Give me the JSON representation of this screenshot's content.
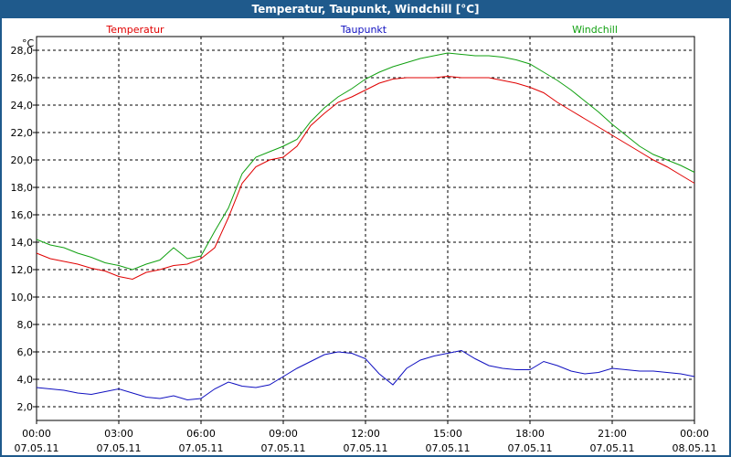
{
  "window": {
    "title": "Temperatur, Taupunkt, Windchill [°C]"
  },
  "chart_data": {
    "type": "line",
    "title": "Temperatur, Taupunkt, Windchill [°C]",
    "ylabel": "°C",
    "xlabel": "",
    "ylim": [
      1.0,
      29.0
    ],
    "xlim": [
      0,
      24
    ],
    "grid": true,
    "yticks": [
      2.0,
      4.0,
      6.0,
      8.0,
      10.0,
      12.0,
      14.0,
      16.0,
      18.0,
      20.0,
      22.0,
      24.0,
      26.0,
      28.0
    ],
    "ytick_labels": [
      "2,0",
      "4,0",
      "6,0",
      "8,0",
      "10,0",
      "12,0",
      "14,0",
      "16,0",
      "18,0",
      "20,0",
      "22,0",
      "24,0",
      "26,0",
      "28,0"
    ],
    "xticks": [
      {
        "hour": 0,
        "time": "00:00",
        "date": "07.05.11"
      },
      {
        "hour": 3,
        "time": "03:00",
        "date": "07.05.11"
      },
      {
        "hour": 6,
        "time": "06:00",
        "date": "07.05.11"
      },
      {
        "hour": 9,
        "time": "09:00",
        "date": "07.05.11"
      },
      {
        "hour": 12,
        "time": "12:00",
        "date": "07.05.11"
      },
      {
        "hour": 15,
        "time": "15:00",
        "date": "07.05.11"
      },
      {
        "hour": 18,
        "time": "18:00",
        "date": "07.05.11"
      },
      {
        "hour": 21,
        "time": "21:00",
        "date": "07.05.11"
      },
      {
        "hour": 24,
        "time": "00:00",
        "date": "08.05.11"
      }
    ],
    "series": [
      {
        "name": "Temperatur",
        "color": "#e00000",
        "legend_position": "left",
        "x": [
          0,
          0.5,
          1,
          1.5,
          2,
          2.5,
          3,
          3.5,
          4,
          4.5,
          5,
          5.5,
          6,
          6.5,
          7,
          7.5,
          8,
          8.5,
          9,
          9.5,
          10,
          10.5,
          11,
          11.5,
          12,
          12.5,
          13,
          13.5,
          14,
          14.5,
          15,
          15.5,
          16,
          16.5,
          17,
          17.5,
          18,
          18.5,
          19,
          19.5,
          20,
          20.5,
          21,
          21.5,
          22,
          22.5,
          23,
          23.5,
          24
        ],
        "y": [
          13.2,
          12.8,
          12.6,
          12.4,
          12.1,
          11.9,
          11.5,
          11.3,
          11.8,
          12.0,
          12.3,
          12.4,
          12.8,
          13.6,
          15.8,
          18.3,
          19.5,
          20.0,
          20.2,
          21.0,
          22.5,
          23.4,
          24.2,
          24.6,
          25.1,
          25.6,
          25.9,
          26.0,
          26.0,
          26.0,
          26.1,
          26.0,
          26.0,
          26.0,
          25.8,
          25.6,
          25.3,
          24.9,
          24.2,
          23.6,
          23.0,
          22.4,
          21.8,
          21.2,
          20.6,
          20.0,
          19.5,
          18.9,
          18.3
        ]
      },
      {
        "name": "Taupunkt",
        "color": "#1010c0",
        "legend_position": "center",
        "x": [
          0,
          0.5,
          1,
          1.5,
          2,
          2.5,
          3,
          3.5,
          4,
          4.5,
          5,
          5.5,
          6,
          6.5,
          7,
          7.5,
          8,
          8.5,
          9,
          9.5,
          10,
          10.5,
          11,
          11.5,
          12,
          12.5,
          13,
          13.5,
          14,
          14.5,
          15,
          15.5,
          16,
          16.5,
          17,
          17.5,
          18,
          18.5,
          19,
          19.5,
          20,
          20.5,
          21,
          21.5,
          22,
          22.5,
          23,
          23.5,
          24
        ],
        "y": [
          3.4,
          3.3,
          3.2,
          3.0,
          2.9,
          3.1,
          3.3,
          3.0,
          2.7,
          2.6,
          2.8,
          2.5,
          2.6,
          3.3,
          3.8,
          3.5,
          3.4,
          3.6,
          4.2,
          4.8,
          5.3,
          5.8,
          6.0,
          5.9,
          5.5,
          4.4,
          3.6,
          4.8,
          5.4,
          5.7,
          5.9,
          6.1,
          5.5,
          5.0,
          4.8,
          4.7,
          4.7,
          5.3,
          5.0,
          4.6,
          4.4,
          4.5,
          4.8,
          4.7,
          4.6,
          4.6,
          4.5,
          4.4,
          4.2
        ]
      },
      {
        "name": "Windchill",
        "color": "#10a010",
        "legend_position": "right",
        "x": [
          0,
          0.5,
          1,
          1.5,
          2,
          2.5,
          3,
          3.5,
          4,
          4.5,
          5,
          5.5,
          6,
          6.5,
          7,
          7.5,
          8,
          8.5,
          9,
          9.5,
          10,
          10.5,
          11,
          11.5,
          12,
          12.5,
          13,
          13.5,
          14,
          14.5,
          15,
          15.5,
          16,
          16.5,
          17,
          17.5,
          18,
          18.5,
          19,
          19.5,
          20,
          20.5,
          21,
          21.5,
          22,
          22.5,
          23,
          23.5,
          24
        ],
        "y": [
          14.2,
          13.8,
          13.6,
          13.2,
          12.9,
          12.5,
          12.3,
          12.0,
          12.4,
          12.7,
          13.6,
          12.8,
          13.0,
          14.8,
          16.5,
          19.0,
          20.2,
          20.6,
          21.0,
          21.5,
          22.8,
          23.8,
          24.6,
          25.2,
          25.9,
          26.4,
          26.8,
          27.1,
          27.4,
          27.6,
          27.8,
          27.7,
          27.6,
          27.6,
          27.5,
          27.3,
          27.0,
          26.4,
          25.8,
          25.1,
          24.3,
          23.5,
          22.6,
          21.8,
          21.0,
          20.4,
          20.0,
          19.6,
          19.1
        ]
      }
    ]
  }
}
